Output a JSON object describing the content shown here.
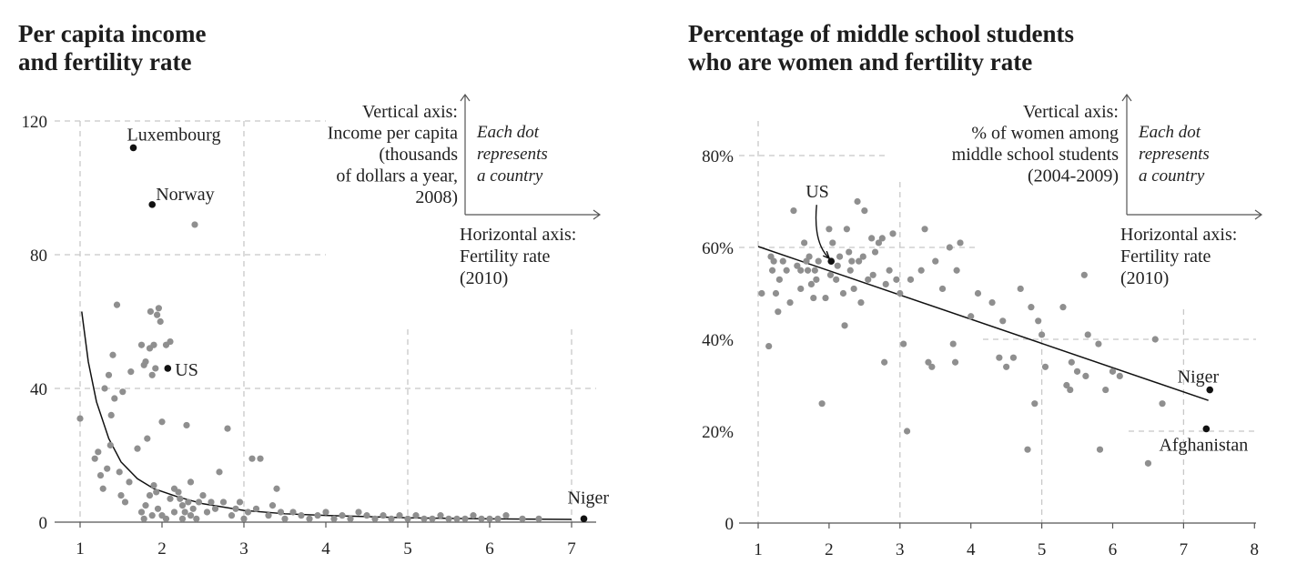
{
  "chart_data": [
    {
      "type": "scatter",
      "title": "Per capita income\nand fertility rate",
      "ylabel": "Vertical axis:\nIncome per capita\n(thousands\nof dollars a year,\n2008)",
      "xlabel": "Horizontal axis:\nFertility rate\n(2010)",
      "note": "Each dot\nrepresents\na country",
      "xlim": [
        1,
        7.3
      ],
      "ylim": [
        0,
        120
      ],
      "xticks": [
        "1",
        "2",
        "3",
        "4",
        "5",
        "6",
        "7"
      ],
      "yticks": [
        "0",
        "40",
        "80",
        "120"
      ],
      "grid": "dashed",
      "labeled_points": [
        {
          "label": "Luxembourg",
          "x": 1.65,
          "y": 112
        },
        {
          "label": "Norway",
          "x": 1.88,
          "y": 95
        },
        {
          "label": "US",
          "x": 2.07,
          "y": 46
        },
        {
          "label": "Niger",
          "x": 7.15,
          "y": 1
        }
      ],
      "points": [
        [
          1.0,
          31
        ],
        [
          1.18,
          19
        ],
        [
          1.22,
          21
        ],
        [
          1.25,
          14
        ],
        [
          1.28,
          10
        ],
        [
          1.3,
          40
        ],
        [
          1.33,
          16
        ],
        [
          1.35,
          44
        ],
        [
          1.37,
          23
        ],
        [
          1.38,
          32
        ],
        [
          1.4,
          50
        ],
        [
          1.42,
          37
        ],
        [
          1.45,
          65
        ],
        [
          1.48,
          15
        ],
        [
          1.5,
          8
        ],
        [
          1.52,
          39
        ],
        [
          1.55,
          6
        ],
        [
          1.6,
          12
        ],
        [
          1.62,
          45
        ],
        [
          1.7,
          22
        ],
        [
          1.75,
          53
        ],
        [
          1.78,
          47
        ],
        [
          1.8,
          48
        ],
        [
          1.82,
          25
        ],
        [
          1.85,
          52
        ],
        [
          1.86,
          63
        ],
        [
          1.88,
          44
        ],
        [
          1.9,
          53
        ],
        [
          1.92,
          46
        ],
        [
          1.94,
          62
        ],
        [
          1.96,
          64
        ],
        [
          1.98,
          60
        ],
        [
          2.0,
          30
        ],
        [
          2.05,
          53
        ],
        [
          2.1,
          54
        ],
        [
          2.15,
          10
        ],
        [
          1.75,
          3
        ],
        [
          1.8,
          5
        ],
        [
          1.85,
          8
        ],
        [
          1.9,
          11
        ],
        [
          1.95,
          4
        ],
        [
          2.0,
          2
        ],
        [
          2.05,
          1
        ],
        [
          2.1,
          7
        ],
        [
          2.15,
          3
        ],
        [
          2.2,
          9
        ],
        [
          2.25,
          5
        ],
        [
          2.3,
          29
        ],
        [
          2.35,
          2
        ],
        [
          2.35,
          12
        ],
        [
          2.4,
          89
        ],
        [
          2.45,
          6
        ],
        [
          2.5,
          8
        ],
        [
          2.55,
          3
        ],
        [
          2.6,
          6
        ],
        [
          2.65,
          4
        ],
        [
          2.7,
          15
        ],
        [
          2.75,
          6
        ],
        [
          2.8,
          28
        ],
        [
          2.85,
          2
        ],
        [
          2.9,
          4
        ],
        [
          2.95,
          6
        ],
        [
          3.0,
          1
        ],
        [
          3.05,
          3
        ],
        [
          3.1,
          19
        ],
        [
          3.15,
          4
        ],
        [
          3.2,
          19
        ],
        [
          3.3,
          2
        ],
        [
          3.35,
          5
        ],
        [
          3.4,
          10
        ],
        [
          3.45,
          3
        ],
        [
          3.5,
          1
        ],
        [
          3.6,
          3
        ],
        [
          3.7,
          2
        ],
        [
          3.8,
          1
        ],
        [
          3.9,
          2
        ],
        [
          4.0,
          3
        ],
        [
          4.1,
          1
        ],
        [
          4.2,
          2
        ],
        [
          4.3,
          1
        ],
        [
          4.4,
          3
        ],
        [
          4.5,
          2
        ],
        [
          4.6,
          1
        ],
        [
          4.7,
          2
        ],
        [
          4.8,
          1
        ],
        [
          4.9,
          2
        ],
        [
          5.0,
          1
        ],
        [
          5.1,
          2
        ],
        [
          5.2,
          1
        ],
        [
          5.3,
          1
        ],
        [
          5.4,
          2
        ],
        [
          5.5,
          1
        ],
        [
          5.6,
          1
        ],
        [
          5.7,
          1
        ],
        [
          5.8,
          2
        ],
        [
          5.9,
          1
        ],
        [
          6.0,
          1
        ],
        [
          6.1,
          1
        ],
        [
          6.2,
          2
        ],
        [
          6.4,
          1
        ],
        [
          6.6,
          1
        ],
        [
          2.25,
          1
        ],
        [
          2.28,
          3
        ],
        [
          2.32,
          6
        ],
        [
          2.38,
          4
        ],
        [
          1.78,
          1
        ],
        [
          1.88,
          2
        ],
        [
          1.93,
          9
        ],
        [
          2.22,
          7
        ],
        [
          2.42,
          1
        ]
      ],
      "trend": [
        [
          1.02,
          63
        ],
        [
          1.1,
          48
        ],
        [
          1.2,
          36
        ],
        [
          1.35,
          25
        ],
        [
          1.5,
          18
        ],
        [
          1.7,
          13
        ],
        [
          1.9,
          10
        ],
        [
          2.2,
          7.5
        ],
        [
          2.5,
          5.5
        ],
        [
          3.0,
          3.5
        ],
        [
          3.5,
          2.5
        ],
        [
          4.0,
          2
        ],
        [
          5.0,
          1.3
        ],
        [
          6.0,
          1
        ],
        [
          7.0,
          0.8
        ]
      ]
    },
    {
      "type": "scatter",
      "title": "Percentage of middle school students\nwho are women and fertility rate",
      "ylabel": "Vertical axis:\n% of women among\nmiddle school students\n(2004-2009)",
      "xlabel": "Horizontal axis:\nFertility rate\n(2010)",
      "note": "Each dot\nrepresents\na country",
      "xlim": [
        1,
        8
      ],
      "ylim": [
        0,
        80
      ],
      "xticks": [
        "1",
        "2",
        "3",
        "4",
        "5",
        "6",
        "7",
        "8"
      ],
      "yticks": [
        "0",
        "20%",
        "40%",
        "60%",
        "80%"
      ],
      "grid": "dashed",
      "labeled_points": [
        {
          "label": "US",
          "x": 2.03,
          "y": 57
        },
        {
          "label": "Niger",
          "x": 7.37,
          "y": 29
        },
        {
          "label": "Afghanistan",
          "x": 7.32,
          "y": 20.5
        }
      ],
      "points": [
        [
          1.05,
          50
        ],
        [
          1.15,
          38.5
        ],
        [
          1.2,
          55
        ],
        [
          1.22,
          57
        ],
        [
          1.25,
          50
        ],
        [
          1.28,
          46
        ],
        [
          1.3,
          53
        ],
        [
          1.35,
          57
        ],
        [
          1.4,
          55
        ],
        [
          1.45,
          48
        ],
        [
          1.5,
          68
        ],
        [
          1.55,
          56
        ],
        [
          1.6,
          51
        ],
        [
          1.65,
          61
        ],
        [
          1.7,
          55
        ],
        [
          1.72,
          58
        ],
        [
          1.75,
          52
        ],
        [
          1.78,
          49
        ],
        [
          1.8,
          55
        ],
        [
          1.85,
          57
        ],
        [
          1.9,
          26
        ],
        [
          1.95,
          49
        ],
        [
          2.0,
          64
        ],
        [
          2.05,
          61
        ],
        [
          2.1,
          53
        ],
        [
          2.15,
          58
        ],
        [
          2.2,
          50
        ],
        [
          2.22,
          43
        ],
        [
          2.25,
          64
        ],
        [
          2.28,
          59
        ],
        [
          2.3,
          55
        ],
        [
          2.35,
          51
        ],
        [
          2.4,
          70
        ],
        [
          2.42,
          57
        ],
        [
          2.45,
          48
        ],
        [
          2.48,
          58
        ],
        [
          2.5,
          68
        ],
        [
          2.55,
          53
        ],
        [
          2.6,
          62
        ],
        [
          2.65,
          59
        ],
        [
          2.7,
          61
        ],
        [
          2.75,
          62
        ],
        [
          2.78,
          35
        ],
        [
          2.8,
          52
        ],
        [
          2.85,
          55
        ],
        [
          2.9,
          63
        ],
        [
          2.95,
          53
        ],
        [
          3.0,
          50
        ],
        [
          3.05,
          39
        ],
        [
          3.1,
          20
        ],
        [
          3.15,
          53
        ],
        [
          3.3,
          55
        ],
        [
          3.35,
          64
        ],
        [
          3.4,
          35
        ],
        [
          3.45,
          34
        ],
        [
          3.5,
          57
        ],
        [
          3.6,
          51
        ],
        [
          3.7,
          60
        ],
        [
          3.75,
          39
        ],
        [
          3.78,
          35
        ],
        [
          3.8,
          55
        ],
        [
          3.85,
          61
        ],
        [
          4.0,
          45
        ],
        [
          4.1,
          50
        ],
        [
          4.3,
          48
        ],
        [
          4.4,
          36
        ],
        [
          4.45,
          44
        ],
        [
          4.5,
          34
        ],
        [
          4.6,
          36
        ],
        [
          4.7,
          51
        ],
        [
          4.8,
          16
        ],
        [
          4.85,
          47
        ],
        [
          4.9,
          26
        ],
        [
          4.95,
          44
        ],
        [
          5.0,
          41
        ],
        [
          5.05,
          34
        ],
        [
          5.3,
          47
        ],
        [
          5.35,
          30
        ],
        [
          5.4,
          29
        ],
        [
          5.42,
          35
        ],
        [
          5.5,
          33
        ],
        [
          5.6,
          54
        ],
        [
          5.62,
          32
        ],
        [
          5.65,
          41
        ],
        [
          5.8,
          39
        ],
        [
          5.82,
          16
        ],
        [
          5.9,
          29
        ],
        [
          6.0,
          33
        ],
        [
          6.1,
          32
        ],
        [
          6.5,
          13
        ],
        [
          6.6,
          40
        ],
        [
          6.7,
          26
        ],
        [
          1.6,
          55
        ],
        [
          1.68,
          57
        ],
        [
          1.82,
          53
        ],
        [
          2.02,
          54
        ],
        [
          2.12,
          56
        ],
        [
          2.32,
          57
        ],
        [
          2.62,
          54
        ],
        [
          1.18,
          58
        ]
      ],
      "trend": [
        [
          1,
          60.2
        ],
        [
          7.35,
          26.7
        ]
      ]
    }
  ]
}
